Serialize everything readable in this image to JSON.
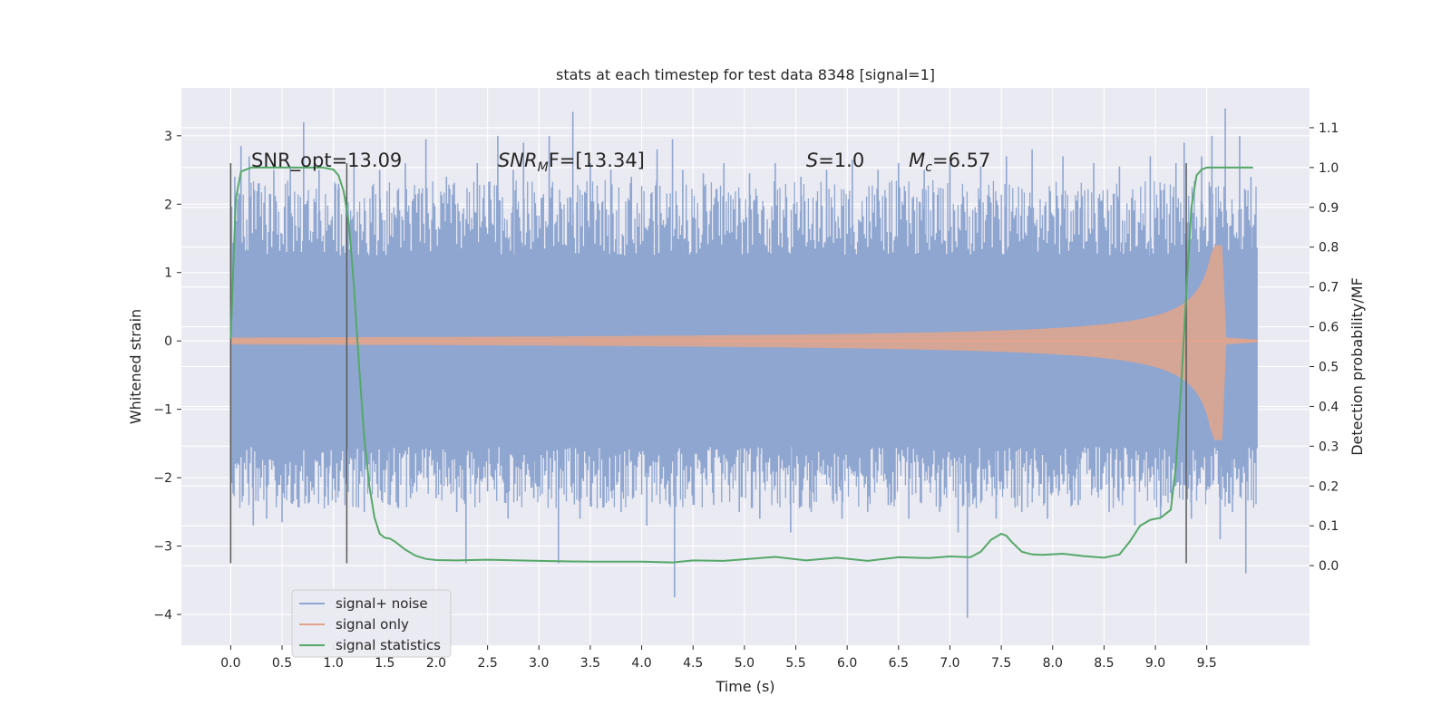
{
  "chart_data": {
    "type": "line",
    "title": "stats at each timestep for test data 8348 [signal=1]",
    "xlabel": "Time (s)",
    "ylabel": "Whitened strain",
    "y2label": "Detection probability/MF",
    "xlim": [
      -0.48,
      10.5
    ],
    "ylim": [
      -4.45,
      3.7
    ],
    "y2lim": [
      -0.2,
      1.2
    ],
    "grid": true,
    "x_ticks": [
      "0.0",
      "0.5",
      "1.0",
      "1.5",
      "2.0",
      "2.5",
      "3.0",
      "3.5",
      "4.0",
      "4.5",
      "5.0",
      "5.5",
      "6.0",
      "6.5",
      "7.0",
      "7.5",
      "8.0",
      "8.5",
      "9.0",
      "9.5"
    ],
    "y_ticks": [
      "−4",
      "−3",
      "−2",
      "−1",
      "0",
      "1",
      "2",
      "3"
    ],
    "y2_ticks": [
      "0.0",
      "0.1",
      "0.2",
      "0.3",
      "0.4",
      "0.5",
      "0.6",
      "0.7",
      "0.8",
      "0.9",
      "1.0",
      "1.1"
    ],
    "annotations": [
      {
        "text": "SNR_opt=13.09",
        "x": 0.2,
        "y": 2.55
      },
      {
        "text_base": "SNR",
        "text_sub": "M",
        "text_rest": "F=[13.34]",
        "x": 2.6,
        "y": 2.55
      },
      {
        "text_base": "S",
        "text_sub": "",
        "text_rest": "=1.0",
        "x": 5.6,
        "y": 2.55
      },
      {
        "text_base": "M",
        "text_sub": "c",
        "text_rest": "=6.57",
        "x": 6.6,
        "y": 2.55
      }
    ],
    "vertical_lines": [
      {
        "x": 0.0,
        "y_range": [
          -3.25,
          2.6
        ]
      },
      {
        "x": 1.13,
        "y_range": [
          -3.25,
          2.6
        ]
      },
      {
        "x": 9.3,
        "y_range": [
          -3.25,
          2.6
        ]
      }
    ],
    "series": [
      {
        "name": "signal+ noise",
        "color": "#8fa6d0",
        "envelope": {
          "x_range": [
            0.0,
            9.99
          ],
          "band_upper": 1.25,
          "band_lower": -1.55,
          "spikes": [
            {
              "x": 0.04,
              "y": 2.4
            },
            {
              "x": 0.1,
              "y": 2.85
            },
            {
              "x": 0.18,
              "y": 2.7
            },
            {
              "x": 0.22,
              "y": -2.7
            },
            {
              "x": 0.35,
              "y": -2.6
            },
            {
              "x": 0.42,
              "y": 2.5
            },
            {
              "x": 0.5,
              "y": -2.65
            },
            {
              "x": 0.58,
              "y": 2.55
            },
            {
              "x": 0.65,
              "y": -2.3
            },
            {
              "x": 0.71,
              "y": 3.2
            },
            {
              "x": 0.8,
              "y": -2.1
            },
            {
              "x": 0.86,
              "y": 2.5
            },
            {
              "x": 0.95,
              "y": -2.4
            },
            {
              "x": 1.05,
              "y": 2.3
            },
            {
              "x": 1.2,
              "y": 2.6
            },
            {
              "x": 1.3,
              "y": -2.5
            },
            {
              "x": 1.45,
              "y": 2.5
            },
            {
              "x": 1.55,
              "y": -2.4
            },
            {
              "x": 1.7,
              "y": 2.6
            },
            {
              "x": 1.75,
              "y": -2.3
            },
            {
              "x": 1.9,
              "y": 2.95
            },
            {
              "x": 2.0,
              "y": -2.3
            },
            {
              "x": 2.1,
              "y": 2.4
            },
            {
              "x": 2.2,
              "y": -2.5
            },
            {
              "x": 2.29,
              "y": -3.25
            },
            {
              "x": 2.4,
              "y": 2.6
            },
            {
              "x": 2.5,
              "y": -2.2
            },
            {
              "x": 2.6,
              "y": 3.0
            },
            {
              "x": 2.7,
              "y": -2.6
            },
            {
              "x": 2.75,
              "y": 2.5
            },
            {
              "x": 2.85,
              "y": 2.9
            },
            {
              "x": 2.95,
              "y": -2.3
            },
            {
              "x": 3.1,
              "y": 3.0
            },
            {
              "x": 3.19,
              "y": -3.25
            },
            {
              "x": 3.33,
              "y": 3.35
            },
            {
              "x": 3.4,
              "y": -2.6
            },
            {
              "x": 3.5,
              "y": 2.6
            },
            {
              "x": 3.6,
              "y": -2.3
            },
            {
              "x": 3.7,
              "y": 2.5
            },
            {
              "x": 3.8,
              "y": -2.5
            },
            {
              "x": 3.9,
              "y": 2.4
            },
            {
              "x": 4.05,
              "y": -2.7
            },
            {
              "x": 4.15,
              "y": 2.8
            },
            {
              "x": 4.3,
              "y": 2.95
            },
            {
              "x": 4.32,
              "y": -3.75
            },
            {
              "x": 4.4,
              "y": 2.5
            },
            {
              "x": 4.5,
              "y": -2.3
            },
            {
              "x": 4.6,
              "y": 2.45
            },
            {
              "x": 4.7,
              "y": -2.4
            },
            {
              "x": 4.8,
              "y": 2.6
            },
            {
              "x": 4.95,
              "y": -2.5
            },
            {
              "x": 5.05,
              "y": 2.45
            },
            {
              "x": 5.15,
              "y": -2.6
            },
            {
              "x": 5.3,
              "y": 2.6
            },
            {
              "x": 5.45,
              "y": -2.8
            },
            {
              "x": 5.55,
              "y": 2.4
            },
            {
              "x": 5.65,
              "y": -2.5
            },
            {
              "x": 5.8,
              "y": 2.5
            },
            {
              "x": 5.95,
              "y": -2.6
            },
            {
              "x": 6.05,
              "y": 2.65
            },
            {
              "x": 6.2,
              "y": -2.5
            },
            {
              "x": 6.3,
              "y": 2.5
            },
            {
              "x": 6.4,
              "y": -2.4
            },
            {
              "x": 6.5,
              "y": 2.6
            },
            {
              "x": 6.6,
              "y": -2.6
            },
            {
              "x": 6.75,
              "y": 2.5
            },
            {
              "x": 6.9,
              "y": -2.5
            },
            {
              "x": 7.0,
              "y": 2.6
            },
            {
              "x": 7.08,
              "y": -2.8
            },
            {
              "x": 7.17,
              "y": -4.05
            },
            {
              "x": 7.3,
              "y": 2.55
            },
            {
              "x": 7.45,
              "y": -2.6
            },
            {
              "x": 7.55,
              "y": 2.7
            },
            {
              "x": 7.7,
              "y": -2.5
            },
            {
              "x": 7.8,
              "y": 2.8
            },
            {
              "x": 7.95,
              "y": -2.6
            },
            {
              "x": 8.1,
              "y": 2.7
            },
            {
              "x": 8.25,
              "y": -2.4
            },
            {
              "x": 8.4,
              "y": 2.6
            },
            {
              "x": 8.55,
              "y": -2.5
            },
            {
              "x": 8.65,
              "y": 2.55
            },
            {
              "x": 8.8,
              "y": -2.7
            },
            {
              "x": 8.95,
              "y": 2.7
            },
            {
              "x": 9.05,
              "y": -2.6
            },
            {
              "x": 9.2,
              "y": 2.6
            },
            {
              "x": 9.28,
              "y": 2.9
            },
            {
              "x": 9.35,
              "y": -2.6
            },
            {
              "x": 9.45,
              "y": 2.7
            },
            {
              "x": 9.55,
              "y": 3.0
            },
            {
              "x": 9.63,
              "y": -2.9
            },
            {
              "x": 9.68,
              "y": 3.4
            },
            {
              "x": 9.75,
              "y": -2.5
            },
            {
              "x": 9.82,
              "y": 3.0
            },
            {
              "x": 9.88,
              "y": -3.4
            },
            {
              "x": 9.93,
              "y": 2.4
            }
          ]
        }
      },
      {
        "name": "signal only",
        "color": "#e2a58c",
        "chirp": {
          "start": 0.0,
          "merger": 9.65,
          "end": 9.99,
          "peak_amplitude": 1.4,
          "trough_amplitude": -1.45
        }
      },
      {
        "name": "signal statistics",
        "color": "#55a868",
        "axis": "right",
        "x": [
          0.0,
          0.05,
          0.1,
          0.15,
          0.2,
          0.3,
          0.5,
          0.7,
          0.9,
          1.0,
          1.05,
          1.1,
          1.15,
          1.2,
          1.25,
          1.3,
          1.35,
          1.4,
          1.45,
          1.5,
          1.55,
          1.6,
          1.7,
          1.8,
          1.9,
          2.0,
          2.2,
          2.5,
          3.0,
          3.5,
          4.0,
          4.3,
          4.5,
          4.8,
          5.0,
          5.3,
          5.6,
          5.9,
          6.2,
          6.5,
          6.8,
          7.0,
          7.2,
          7.3,
          7.4,
          7.5,
          7.55,
          7.6,
          7.7,
          7.8,
          7.9,
          8.1,
          8.3,
          8.5,
          8.65,
          8.75,
          8.85,
          8.95,
          9.05,
          9.15,
          9.2,
          9.25,
          9.3,
          9.35,
          9.4,
          9.45,
          9.5,
          9.6,
          9.8,
          9.95
        ],
        "values": [
          0.57,
          0.92,
          0.99,
          0.995,
          1.0,
          1.0,
          1.0,
          1.0,
          1.0,
          0.995,
          0.98,
          0.94,
          0.86,
          0.7,
          0.5,
          0.32,
          0.2,
          0.12,
          0.08,
          0.07,
          0.068,
          0.06,
          0.04,
          0.025,
          0.017,
          0.014,
          0.013,
          0.015,
          0.012,
          0.01,
          0.01,
          0.008,
          0.013,
          0.012,
          0.016,
          0.022,
          0.013,
          0.02,
          0.012,
          0.021,
          0.019,
          0.023,
          0.021,
          0.035,
          0.065,
          0.08,
          0.075,
          0.06,
          0.035,
          0.028,
          0.027,
          0.03,
          0.024,
          0.02,
          0.028,
          0.06,
          0.1,
          0.115,
          0.12,
          0.14,
          0.25,
          0.45,
          0.68,
          0.9,
          0.98,
          0.995,
          1.0,
          1.0,
          1.0,
          1.0
        ]
      }
    ],
    "legend": {
      "placement": "lower-left"
    }
  },
  "colors": {
    "plot_background": "#eaeaf2",
    "grid": "#ffffff",
    "text": "#262626",
    "vline": "#595959"
  }
}
